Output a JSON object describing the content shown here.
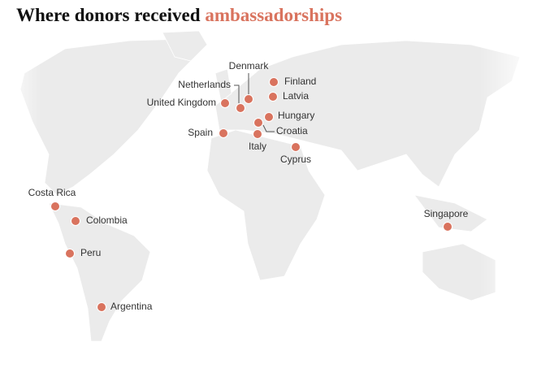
{
  "title": {
    "text": "Where donors received",
    "highlight": "ambassadorships"
  },
  "places": [
    {
      "label": "Denmark"
    },
    {
      "label": "Netherlands"
    },
    {
      "label": "Finland"
    },
    {
      "label": "Latvia"
    },
    {
      "label": "United Kingdom"
    },
    {
      "label": "Hungary"
    },
    {
      "label": "Spain"
    },
    {
      "label": "Croatia"
    },
    {
      "label": "Italy"
    },
    {
      "label": "Cyprus"
    },
    {
      "label": "Costa Rica"
    },
    {
      "label": "Colombia"
    },
    {
      "label": "Singapore"
    },
    {
      "label": "Peru"
    },
    {
      "label": "Argentina"
    }
  ]
}
